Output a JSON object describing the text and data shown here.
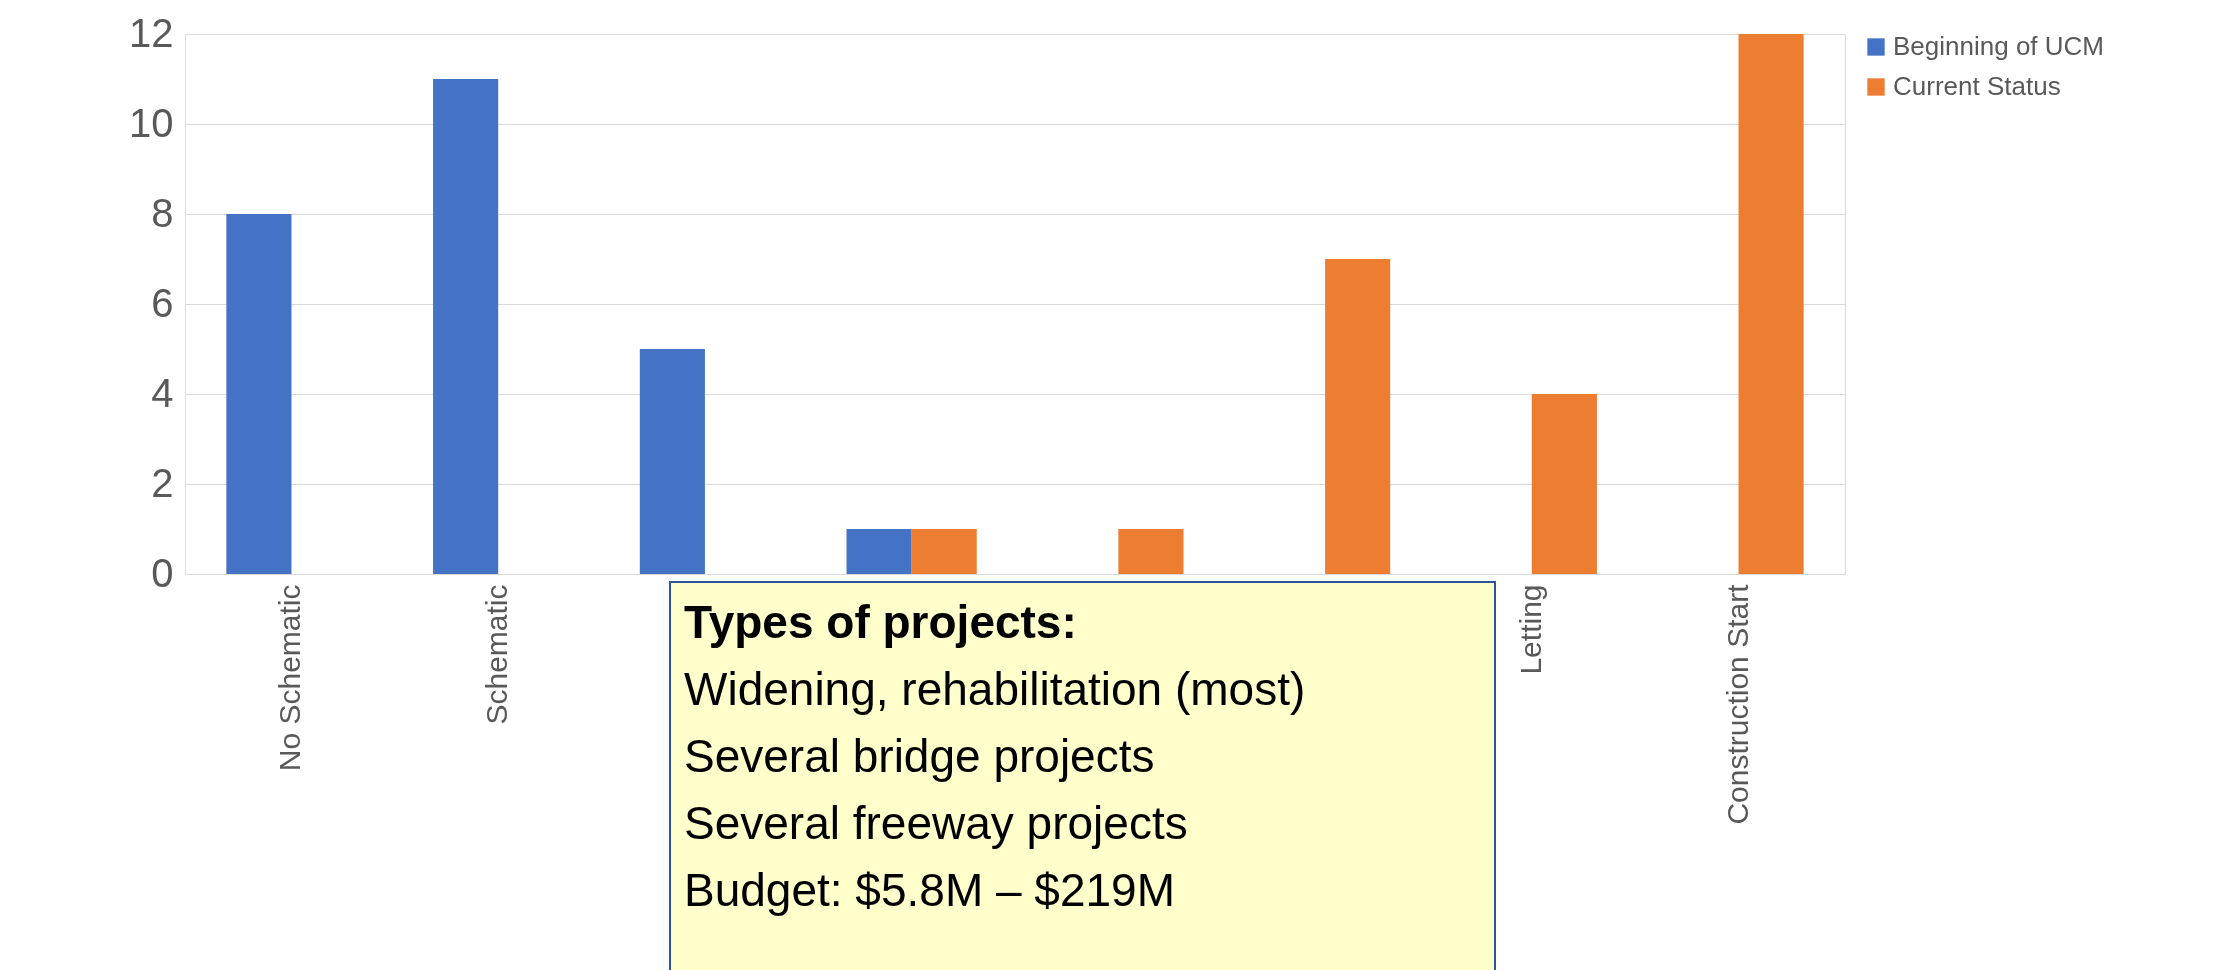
{
  "chart_data": {
    "type": "bar",
    "categories": [
      "No Schematic",
      "Schematic",
      null,
      null,
      null,
      null,
      "Letting",
      "Construction Start"
    ],
    "series": [
      {
        "name": "Beginning of UCM",
        "color": "#4472c4",
        "values": [
          8,
          11,
          5,
          1,
          null,
          null,
          null,
          null
        ]
      },
      {
        "name": "Current Status",
        "color": "#ed7d31",
        "values": [
          null,
          null,
          null,
          1,
          1,
          7,
          4,
          12
        ]
      }
    ],
    "ylim": [
      0,
      12
    ],
    "yticks": [
      0,
      2,
      4,
      6,
      8,
      10,
      12
    ],
    "grid": "y",
    "legend": "right",
    "annotations": [
      "Types of projects:",
      "Widening, rehabilitation (most)",
      "Several bridge projects",
      "Several freeway projects",
      "Budget: $5.8M – $219M"
    ]
  }
}
